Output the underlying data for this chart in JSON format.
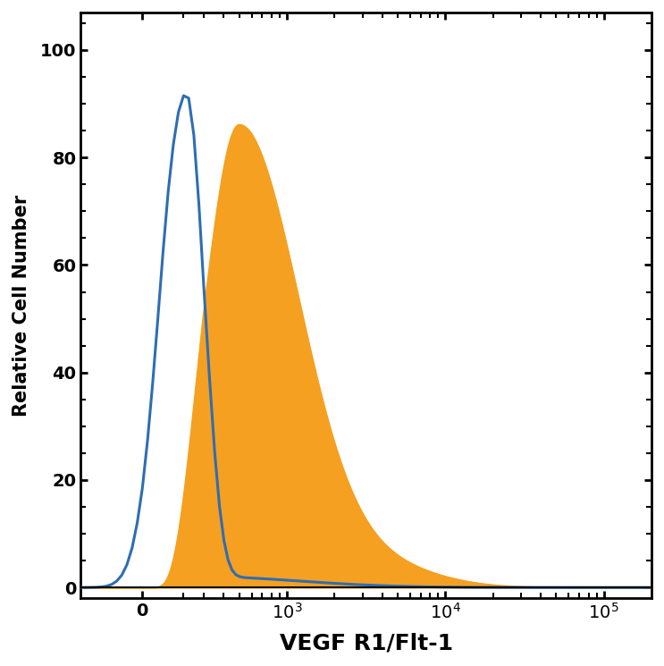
{
  "xlabel": "VEGF R1/Flt-1",
  "ylabel": "Relative Cell Number",
  "ylim": [
    -2,
    107
  ],
  "yticks": [
    0,
    20,
    40,
    60,
    80,
    100
  ],
  "xlabel_fontsize": 18,
  "ylabel_fontsize": 15,
  "tick_fontsize": 14,
  "isotype_color": "#2e6db4",
  "filled_color": "#f5a020",
  "background_color": "#ffffff",
  "linthresh": 300,
  "linscale": 0.35
}
